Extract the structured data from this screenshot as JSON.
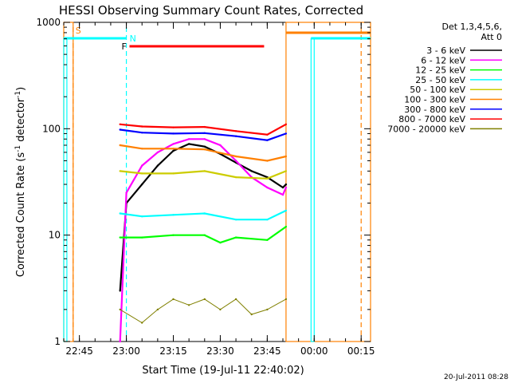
{
  "chart_data": {
    "type": "line",
    "title": "HESSI Observing Summary Count Rates, Corrected",
    "xlabel": "Start Time (19-Jul-11 22:40:02)",
    "ylabel_main": "Corrected Count Rate (s",
    "ylabel_sup1": "-1",
    "ylabel_mid": " detector",
    "ylabel_sup2": "-1",
    "ylabel_end": ")",
    "yscale": "log",
    "ylim": [
      1,
      1000
    ],
    "xlim": [
      "22:40",
      "00:18"
    ],
    "x_ticks": [
      "22:45",
      "23:00",
      "23:15",
      "23:30",
      "23:45",
      "00:00",
      "00:15"
    ],
    "y_ticks": [
      "1",
      "10",
      "100",
      "1000"
    ],
    "legend_header": [
      "Det 1,3,4,5,6,",
      "Att 0"
    ],
    "legend_placement": "right",
    "series": [
      {
        "name": "3 - 6 keV",
        "color": "#000000",
        "x": [
          "22:58",
          "23:00",
          "23:05",
          "23:10",
          "23:15",
          "23:20",
          "23:25",
          "23:30",
          "23:35",
          "23:40",
          "23:45",
          "23:50",
          "23:51"
        ],
        "values": [
          3,
          20,
          30,
          45,
          62,
          72,
          68,
          58,
          48,
          40,
          35,
          28,
          30
        ]
      },
      {
        "name": "6 - 12 keV",
        "color": "#ff00ff",
        "x": [
          "22:58",
          "23:00",
          "23:05",
          "23:10",
          "23:15",
          "23:20",
          "23:25",
          "23:30",
          "23:35",
          "23:40",
          "23:45",
          "23:50",
          "23:51"
        ],
        "values": [
          1,
          25,
          45,
          60,
          72,
          80,
          80,
          70,
          50,
          35,
          28,
          24,
          28
        ]
      },
      {
        "name": "12 - 25 keV",
        "color": "#00ff00",
        "x": [
          "22:58",
          "23:05",
          "23:15",
          "23:25",
          "23:30",
          "23:35",
          "23:45",
          "23:51"
        ],
        "values": [
          9.5,
          9.5,
          10,
          10,
          8.5,
          9.5,
          9,
          12
        ]
      },
      {
        "name": "25 - 50 keV",
        "color": "#00ffff",
        "x": [
          "22:58",
          "23:05",
          "23:15",
          "23:25",
          "23:35",
          "23:45",
          "23:51"
        ],
        "values": [
          16,
          15,
          15.5,
          16,
          14,
          14,
          17
        ]
      },
      {
        "name": "50 - 100 keV",
        "color": "#cccc00",
        "x": [
          "22:58",
          "23:05",
          "23:15",
          "23:25",
          "23:35",
          "23:45",
          "23:51"
        ],
        "values": [
          40,
          38,
          38,
          40,
          35,
          34,
          40
        ]
      },
      {
        "name": "100 - 300 keV",
        "color": "#ff8000",
        "x": [
          "22:58",
          "23:05",
          "23:15",
          "23:25",
          "23:35",
          "23:45",
          "23:51"
        ],
        "values": [
          70,
          65,
          65,
          64,
          55,
          50,
          55
        ]
      },
      {
        "name": "300 - 800 keV",
        "color": "#0000ff",
        "x": [
          "22:58",
          "23:05",
          "23:15",
          "23:25",
          "23:35",
          "23:45",
          "23:51"
        ],
        "values": [
          98,
          92,
          90,
          91,
          85,
          78,
          90
        ]
      },
      {
        "name": "800 - 7000 keV",
        "color": "#ff0000",
        "x": [
          "22:58",
          "23:05",
          "23:15",
          "23:25",
          "23:35",
          "23:45",
          "23:51"
        ],
        "values": [
          110,
          105,
          103,
          104,
          95,
          88,
          110
        ]
      },
      {
        "name": "7000 - 20000 keV",
        "color": "#808000",
        "x": [
          "22:58",
          "23:05",
          "23:10",
          "23:15",
          "23:20",
          "23:25",
          "23:30",
          "23:35",
          "23:40",
          "23:45",
          "23:51"
        ],
        "values": [
          2,
          1.5,
          2,
          2.5,
          2.2,
          2.5,
          2.0,
          2.5,
          1.8,
          2.0,
          2.5
        ]
      }
    ],
    "flags": {
      "S": {
        "label": "S",
        "color": "#ff8000"
      },
      "N": {
        "label": "N",
        "color": "#00ffff"
      },
      "F": {
        "label": "F",
        "color": "#ff0000"
      }
    },
    "timestamp": "20-Jul-2011 08:28"
  }
}
